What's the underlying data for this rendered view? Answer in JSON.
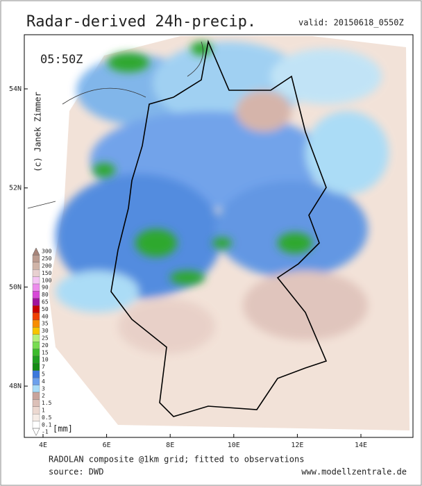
{
  "header": {
    "title": "Radar-derived 24h-precip.",
    "valid": "valid: 20150618_0550Z"
  },
  "map": {
    "time": "05:50Z",
    "credit": "(c) Janek Zimmer",
    "lat_labels": [
      "54N",
      "52N",
      "50N",
      "48N"
    ],
    "lon_labels": [
      "4E",
      "6E",
      "8E",
      "10E",
      "12E",
      "14E"
    ]
  },
  "legend": {
    "unit": "[mm]",
    "levels": [
      {
        "label": "300",
        "color": "#a8857a"
      },
      {
        "label": "250",
        "color": "#bc9c90"
      },
      {
        "label": "200",
        "color": "#d0b4a8"
      },
      {
        "label": "150",
        "color": "#e8d0d0"
      },
      {
        "label": "100",
        "color": "#f4c4f4"
      },
      {
        "label": "90",
        "color": "#ec8cec"
      },
      {
        "label": "80",
        "color": "#d848d8"
      },
      {
        "label": "65",
        "color": "#a0149c"
      },
      {
        "label": "50",
        "color": "#c80000"
      },
      {
        "label": "40",
        "color": "#f04000"
      },
      {
        "label": "35",
        "color": "#f88c00"
      },
      {
        "label": "30",
        "color": "#f8c400"
      },
      {
        "label": "25",
        "color": "#b4f07c"
      },
      {
        "label": "20",
        "color": "#78dc50"
      },
      {
        "label": "15",
        "color": "#3cbc2c"
      },
      {
        "label": "10",
        "color": "#20a020"
      },
      {
        "label": "7",
        "color": "#148c14"
      },
      {
        "label": "5",
        "color": "#3c78dc"
      },
      {
        "label": "4",
        "color": "#6ca0ec"
      },
      {
        "label": "3",
        "color": "#a8dcf8"
      },
      {
        "label": "2",
        "color": "#c8a49c"
      },
      {
        "label": "1.5",
        "color": "#dcc0b8"
      },
      {
        "label": "1",
        "color": "#ecd8d0"
      },
      {
        "label": "0.5",
        "color": "#f6ece6"
      },
      {
        "label": "0.1",
        "color": "#ffffff"
      },
      {
        "label": "-1",
        "color": "#ffffff"
      }
    ]
  },
  "footer": {
    "line1": "RADOLAN composite @1km grid; fitted to observations",
    "line2": "source: DWD",
    "url": "www.modellzentrale.de"
  }
}
